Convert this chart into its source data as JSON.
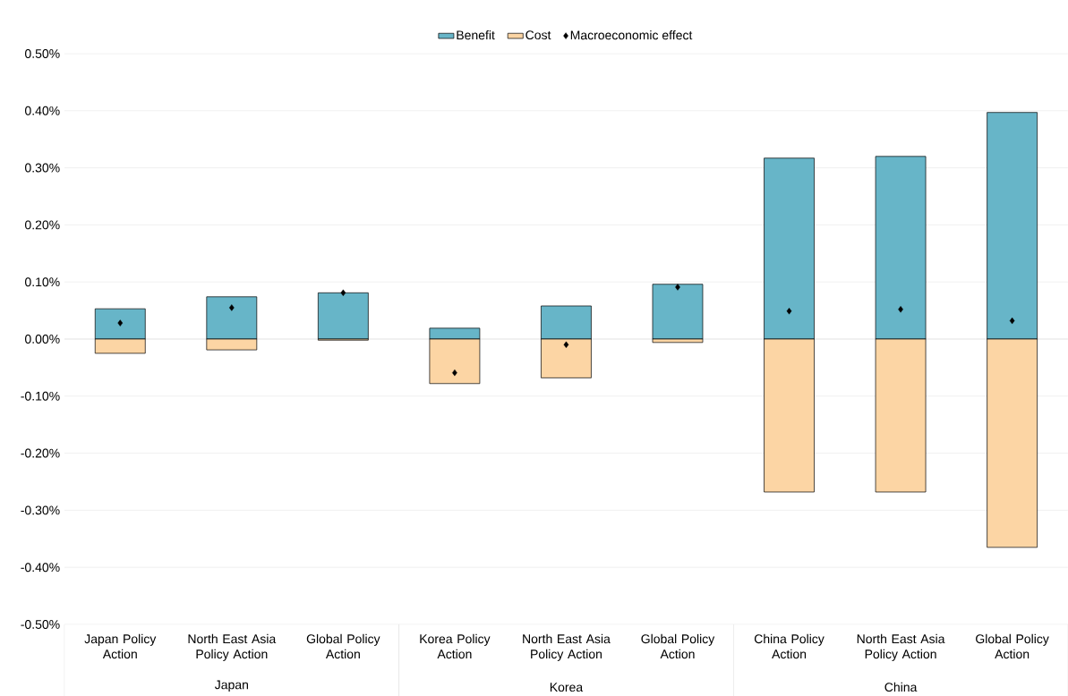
{
  "chart_data": {
    "type": "bar",
    "stacked": true,
    "grid": "y",
    "legend": "top",
    "categories": [
      "Japan Policy Action",
      "North East Asia Policy Action",
      "Global Policy Action",
      "Korea Policy Action",
      "North East Asia Policy Action",
      "Global Policy Action",
      "China Policy Action",
      "North East Asia Policy Action",
      "Global Policy Action"
    ],
    "series": [
      {
        "name": "Benefit",
        "color": "#67b5c8",
        "values": [
          0.053,
          0.074,
          0.081,
          0.019,
          0.058,
          0.096,
          0.317,
          0.32,
          0.397
        ]
      },
      {
        "name": "Cost",
        "color": "#fcd5a4",
        "values": [
          -0.025,
          -0.019,
          -0.002,
          -0.078,
          -0.068,
          -0.006,
          -0.268,
          -0.268,
          -0.365
        ]
      },
      {
        "name": "Macroeconomic effect",
        "type": "scatter",
        "marker": "diamond",
        "color": "#000000",
        "values": [
          0.028,
          0.055,
          0.081,
          -0.059,
          -0.01,
          0.091,
          0.049,
          0.052,
          0.032
        ]
      }
    ],
    "ylim": [
      -0.5,
      0.5
    ],
    "yticks": [
      {
        "value": -0.5,
        "label": "-0.50%"
      },
      {
        "value": -0.4,
        "label": "-0.40%"
      },
      {
        "value": -0.3,
        "label": "-0.30%"
      },
      {
        "value": -0.2,
        "label": "-0.20%"
      },
      {
        "value": -0.1,
        "label": "-0.10%"
      },
      {
        "value": 0,
        "label": "0.00%"
      },
      {
        "value": 0.1,
        "label": "0.10%"
      },
      {
        "value": 0.2,
        "label": "0.20%"
      },
      {
        "value": 0.3,
        "label": "0.30%"
      },
      {
        "value": 0.4,
        "label": "0.40%"
      },
      {
        "value": 0.5,
        "label": "0.50%"
      }
    ],
    "annotations": [
      "Japan",
      "Korea",
      "China"
    ]
  }
}
